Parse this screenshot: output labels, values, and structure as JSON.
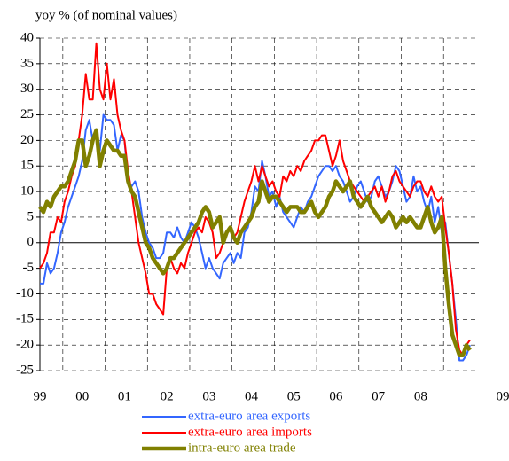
{
  "chart_data": {
    "type": "line",
    "title": "yoy % (of nominal values)",
    "categories": [
      "99",
      null,
      null,
      null,
      null,
      null,
      null,
      null,
      null,
      null,
      null,
      null,
      "00",
      null,
      null,
      null,
      null,
      null,
      null,
      null,
      null,
      null,
      null,
      null,
      "01",
      null,
      null,
      null,
      null,
      null,
      null,
      null,
      null,
      null,
      null,
      null,
      "02",
      null,
      null,
      null,
      null,
      null,
      null,
      null,
      null,
      null,
      null,
      null,
      "03",
      null,
      null,
      null,
      null,
      null,
      null,
      null,
      null,
      null,
      null,
      null,
      "04",
      null,
      null,
      null,
      null,
      null,
      null,
      null,
      null,
      null,
      null,
      null,
      "05",
      null,
      null,
      null,
      null,
      null,
      null,
      null,
      null,
      null,
      null,
      null,
      "06",
      null,
      null,
      null,
      null,
      null,
      null,
      null,
      null,
      null,
      null,
      null,
      "07",
      null,
      null,
      null,
      null,
      null,
      null,
      null,
      null,
      null,
      null,
      null,
      "08",
      null,
      null,
      null,
      null,
      null,
      null,
      null,
      null,
      null,
      null,
      null,
      "09",
      null,
      null
    ],
    "series": [
      {
        "name": "extra-euro area exports",
        "color": "#3366ff",
        "width": 2,
        "values": [
          -8,
          -8,
          -4,
          -6,
          -5,
          -2,
          2,
          4,
          7,
          9,
          11,
          13,
          16,
          22,
          24,
          20,
          22,
          18,
          25,
          24,
          24,
          23,
          18,
          21,
          20,
          12,
          11,
          12,
          10,
          5,
          2,
          0,
          -1,
          -3,
          -3,
          -2,
          2,
          2,
          1,
          3,
          1,
          0,
          2,
          4,
          3,
          1,
          -2,
          -5,
          -3,
          -5,
          -6,
          -7,
          -4,
          -3,
          -2,
          -4,
          -2,
          -3,
          2,
          3,
          6,
          11,
          10,
          16,
          13,
          9,
          10,
          7,
          9,
          6,
          5,
          4,
          3,
          5,
          7,
          6,
          8,
          9,
          11,
          13,
          14,
          15,
          15,
          14,
          15,
          13,
          12,
          10,
          8,
          9,
          11,
          12,
          10,
          8,
          9,
          12,
          13,
          11,
          9,
          10,
          12,
          15,
          14,
          11,
          8,
          9,
          13,
          10,
          11,
          8,
          6,
          9,
          4,
          7,
          2,
          4,
          -2,
          -8,
          -15,
          -23,
          -23,
          -22,
          -20
        ]
      },
      {
        "name": "extra-euro area imports",
        "color": "#ff0000",
        "width": 2,
        "values": [
          -5,
          -4,
          -2,
          2,
          2,
          5,
          4,
          8,
          10,
          13,
          15,
          20,
          25,
          33,
          28,
          28,
          39,
          30,
          28,
          35,
          28,
          32,
          25,
          22,
          20,
          14,
          10,
          5,
          0,
          -3,
          -6,
          -10,
          -10,
          -12,
          -13,
          -14,
          -5,
          -3,
          -5,
          -6,
          -4,
          -5,
          -2,
          0,
          2,
          3,
          2,
          5,
          4,
          2,
          -3,
          -2,
          0,
          2,
          3,
          1,
          2,
          5,
          8,
          10,
          12,
          15,
          12,
          15,
          13,
          11,
          12,
          10,
          9,
          13,
          12,
          14,
          13,
          15,
          14,
          16,
          17,
          18,
          20,
          20,
          21,
          21,
          18,
          15,
          17,
          20,
          16,
          14,
          12,
          11,
          10,
          9,
          8,
          9,
          10,
          11,
          9,
          11,
          8,
          10,
          13,
          14,
          12,
          11,
          10,
          9,
          11,
          12,
          12,
          10,
          9,
          11,
          9,
          8,
          9,
          3,
          -2,
          -8,
          -17,
          -21,
          -22,
          -20,
          -19
        ]
      },
      {
        "name": "intra-euro area trade",
        "color": "#808000",
        "width": 4.5,
        "values": [
          7,
          6,
          8,
          7,
          9,
          10,
          11,
          11,
          12,
          14,
          16,
          20,
          20,
          15,
          17,
          20,
          22,
          15,
          18,
          20,
          19,
          18,
          18,
          17,
          17,
          12,
          10,
          9,
          6,
          3,
          0,
          -1,
          -3,
          -4,
          -5,
          -6,
          -5,
          -3,
          -3,
          -2,
          -1,
          0,
          1,
          2,
          3,
          4,
          6,
          7,
          6,
          3,
          4,
          5,
          0,
          2,
          3,
          1,
          0,
          2,
          3,
          4,
          5,
          7,
          8,
          12,
          10,
          8,
          9,
          9,
          8,
          7,
          6,
          7,
          7,
          7,
          6,
          6,
          7,
          8,
          6,
          5,
          6,
          7,
          9,
          10,
          12,
          11,
          10,
          11,
          12,
          9,
          8,
          7,
          8,
          9,
          7,
          6,
          5,
          4,
          5,
          6,
          5,
          3,
          4,
          5,
          4,
          5,
          4,
          3,
          3,
          5,
          7,
          4,
          2,
          3,
          5,
          -5,
          -12,
          -18,
          -20,
          -22,
          -22,
          -20,
          -21
        ]
      }
    ],
    "ylim": [
      -25,
      40
    ],
    "yticks": [
      -25,
      -20,
      -15,
      -10,
      -5,
      0,
      5,
      10,
      15,
      20,
      25,
      30,
      35,
      40
    ],
    "grid": true
  }
}
